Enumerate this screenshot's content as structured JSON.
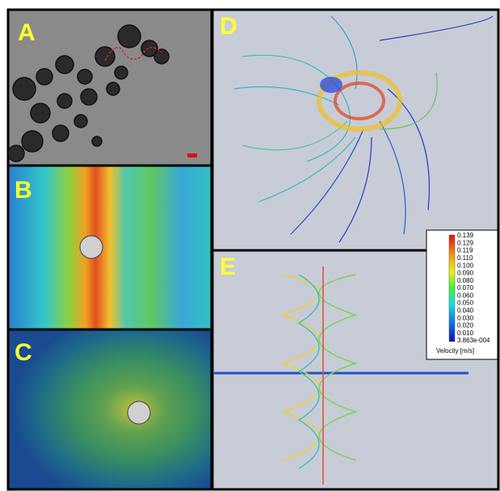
{
  "panels": {
    "a": {
      "label": "A"
    },
    "b": {
      "label": "B"
    },
    "c": {
      "label": "C"
    },
    "d": {
      "label": "D"
    },
    "e": {
      "label": "E"
    }
  },
  "colorbar": {
    "title": "Velocity [m/s]",
    "ticks": [
      "0.139",
      "0.129",
      "0.119",
      "0.110",
      "0.100",
      "0.090",
      "0.080",
      "0.070",
      "0.060",
      "0.050",
      "0.040",
      "0.030",
      "0.020",
      "0.010",
      "3.863e-004"
    ]
  }
}
